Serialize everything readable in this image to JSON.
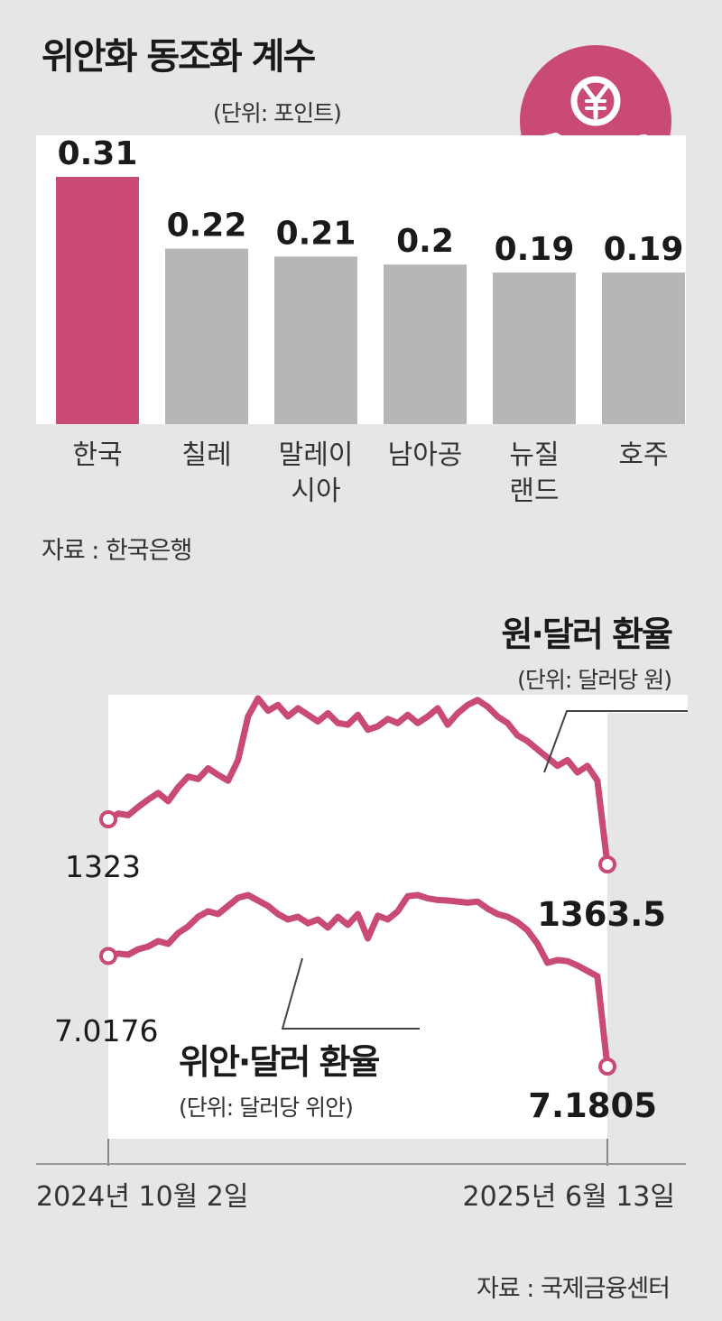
{
  "bar_chart": {
    "title": "위안화 동조화 계수",
    "unit": "(단위: 포인트)",
    "source": "자료 : 한국은행",
    "highlight_color": "#c94a76",
    "bar_color": "#b6b6b6"
  },
  "icon": {
    "name": "yuan-hand-icon",
    "color": "#c94a76"
  },
  "line_chart": {
    "won_title": "원·달러 환율",
    "won_unit": "(단위: 달러당 원)",
    "yuan_title": "위안·달러 환율",
    "yuan_unit": "(단위: 달러당 위안)",
    "start_date": "2024년 10월 2일",
    "end_date": "2025년 6월 13일",
    "source": "자료 : 국제금융센터",
    "line_color": "#c94a76"
  },
  "chart_data": [
    {
      "type": "bar",
      "title": "위안화 동조화 계수",
      "unit": "(단위: 포인트)",
      "categories": [
        "한국",
        "칠레",
        "말레이\n시아",
        "남아공",
        "뉴질\n랜드",
        "호주"
      ],
      "values": [
        0.31,
        0.22,
        0.21,
        0.2,
        0.19,
        0.19
      ],
      "value_labels": [
        "0.31",
        "0.22",
        "0.21",
        "0.2",
        "0.19",
        "0.19"
      ],
      "highlight_index": 0,
      "ylim": [
        0,
        0.31
      ],
      "grid": false
    },
    {
      "type": "line",
      "series": [
        {
          "name": "원·달러 환율",
          "unit": "(단위: 달러당 원)",
          "start_label": "1323",
          "end_label": "1363.5",
          "x": [
            0,
            2,
            4,
            6,
            8,
            10,
            12,
            14,
            16,
            18,
            20,
            22,
            24,
            26,
            28,
            30,
            32,
            34,
            36,
            38,
            40,
            42,
            44,
            46,
            48,
            50,
            52,
            54,
            56,
            58,
            60,
            62,
            64,
            66,
            68,
            70,
            72,
            74,
            76,
            78,
            80,
            82,
            84,
            86,
            88,
            90,
            92,
            94,
            96,
            98,
            100
          ],
          "values": [
            1323,
            1330,
            1328,
            1338,
            1347,
            1355,
            1345,
            1362,
            1375,
            1372,
            1385,
            1377,
            1370,
            1395,
            1448,
            1470,
            1455,
            1462,
            1448,
            1458,
            1450,
            1442,
            1452,
            1440,
            1438,
            1450,
            1432,
            1436,
            1445,
            1440,
            1450,
            1440,
            1448,
            1458,
            1438,
            1452,
            1462,
            1468,
            1460,
            1448,
            1440,
            1425,
            1418,
            1408,
            1398,
            1388,
            1395,
            1380,
            1388,
            1370,
            1363.5
          ]
        },
        {
          "name": "위안·달러 환율",
          "unit": "(단위: 달러당 위안)",
          "start_label": "7.0176",
          "end_label": "7.1805",
          "x": [
            0,
            2,
            4,
            6,
            8,
            10,
            12,
            14,
            16,
            18,
            20,
            22,
            24,
            26,
            28,
            30,
            32,
            34,
            36,
            38,
            40,
            42,
            44,
            46,
            48,
            50,
            52,
            54,
            56,
            58,
            60,
            62,
            64,
            66,
            68,
            70,
            72,
            74,
            76,
            78,
            80,
            82,
            84,
            86,
            88,
            90,
            92,
            94,
            96,
            98,
            100
          ],
          "values": [
            7.0176,
            7.022,
            7.02,
            7.03,
            7.035,
            7.045,
            7.04,
            7.06,
            7.072,
            7.09,
            7.1,
            7.095,
            7.11,
            7.125,
            7.13,
            7.12,
            7.11,
            7.095,
            7.085,
            7.09,
            7.078,
            7.085,
            7.07,
            7.09,
            7.075,
            7.095,
            7.05,
            7.092,
            7.085,
            7.1,
            7.128,
            7.13,
            7.124,
            7.121,
            7.12,
            7.118,
            7.116,
            7.118,
            7.105,
            7.095,
            7.09,
            7.08,
            7.065,
            7.04,
            7.005,
            7.01,
            7.008,
            7.0,
            6.99,
            6.98,
            7.1805
          ]
        }
      ],
      "x_start_label": "2024년 10월 2일",
      "x_end_label": "2025년 6월 13일",
      "grid": false
    }
  ]
}
